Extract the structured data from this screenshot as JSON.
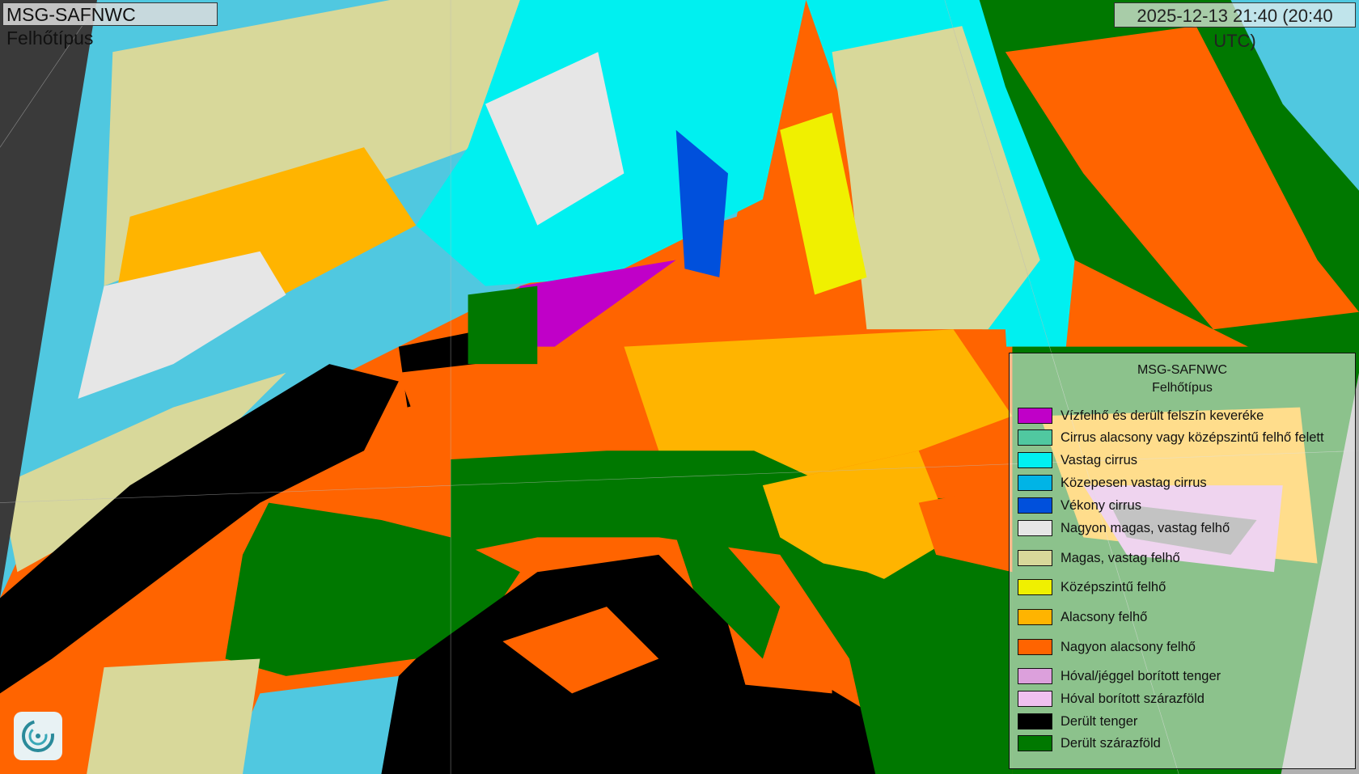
{
  "title": "MSG-SAFNWC Felhőtípus",
  "timestamp": "2025-12-13 21:40 (20:40 UTC)",
  "legend": {
    "title_line1": "MSG-SAFNWC",
    "title_line2": "Felhőtípus",
    "items": [
      {
        "label": "Vízfelhő és derült felszín keveréke",
        "color": "#c000c8"
      },
      {
        "label": "Cirrus alacsony vagy középszintű felhő felett",
        "color": "#50c8a0"
      },
      {
        "label": "Vastag cirrus",
        "color": "#00f0f0"
      },
      {
        "label": "Közepesen vastag cirrus",
        "color": "#00b4e6"
      },
      {
        "label": "Vékony cirrus",
        "color": "#0050dc"
      },
      {
        "label": "Nagyon magas, vastag felhő",
        "color": "#e6e6e6"
      },
      {
        "label": "Magas, vastag felhő",
        "color": "#d8d89a"
      },
      {
        "label": "Középszintű felhő",
        "color": "#f0f000"
      },
      {
        "label": "Alacsony felhő",
        "color": "#ffb400"
      },
      {
        "label": "Nagyon alacsony felhő",
        "color": "#ff6400"
      },
      {
        "label": "Hóval/jéggel borított tenger",
        "color": "#dca0dc"
      },
      {
        "label": "Hóval borított szárazföld",
        "color": "#f0c0f0"
      },
      {
        "label": "Derült tenger",
        "color": "#000000"
      },
      {
        "label": "Derült szárazföld",
        "color": "#007800"
      }
    ]
  },
  "logo": {
    "icon": "safnwc-swirl-logo"
  }
}
